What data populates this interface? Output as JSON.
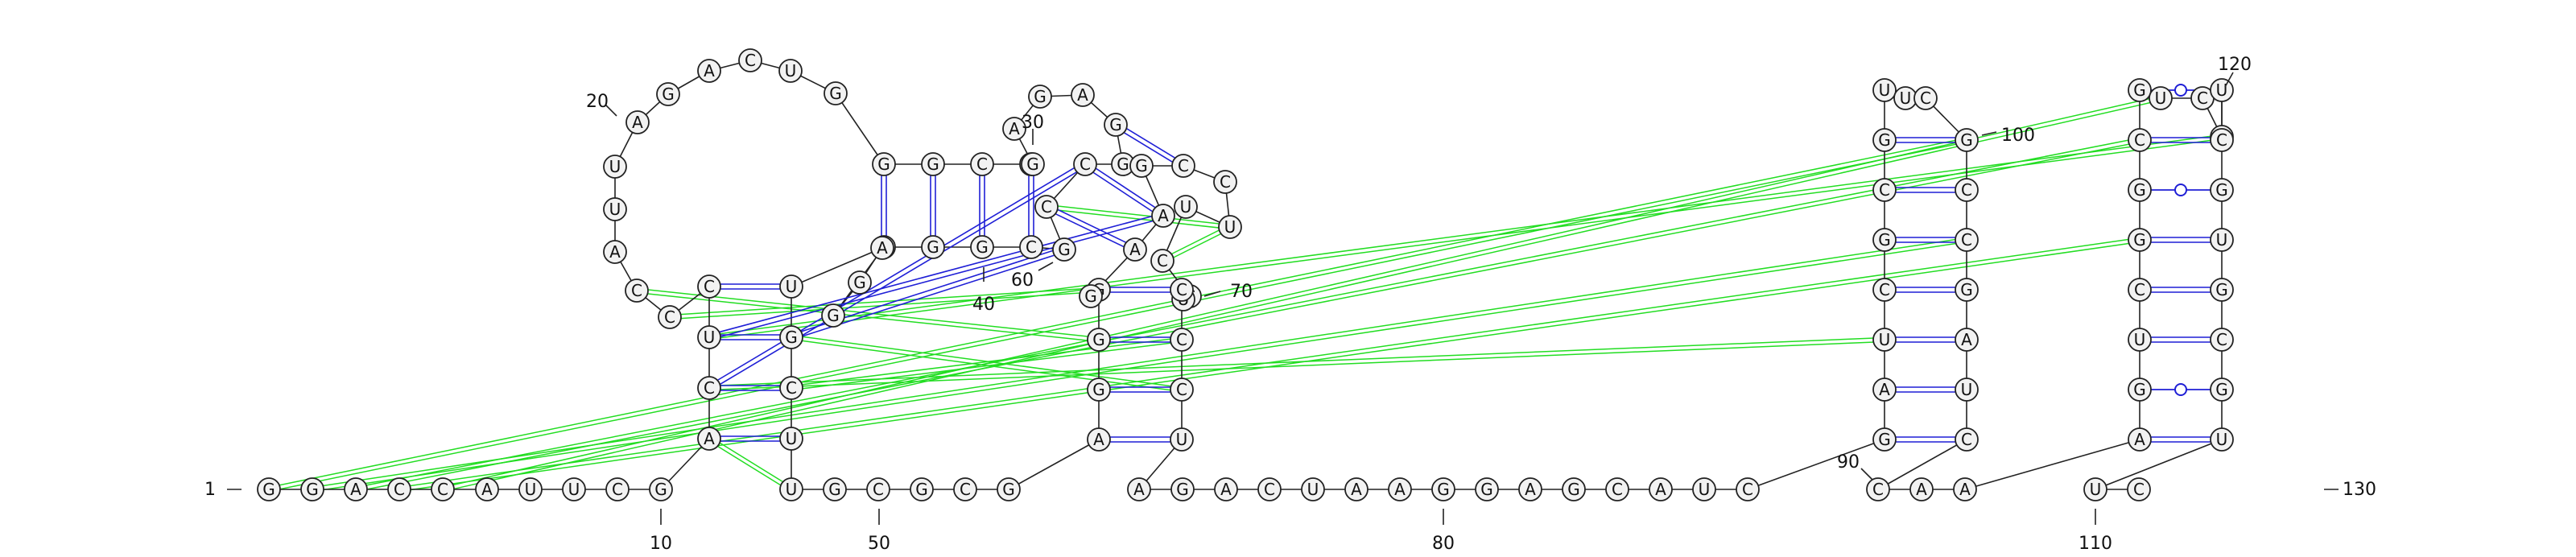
{
  "diagram": {
    "type": "rna-secondary-structure",
    "colors": {
      "canonical_pair": "#1f1fd6",
      "wobble_pair": "#1f1fd6",
      "tertiary_interaction": "#22dd22",
      "backbone": "#222222",
      "nucleotide_fill": "#f2f2f2",
      "nucleotide_stroke": "#222222"
    },
    "position_labels": [
      "1",
      "10",
      "20",
      "30",
      "40",
      "50",
      "60",
      "70",
      "80",
      "90",
      "100",
      "110",
      "120",
      "130"
    ],
    "sequence": [
      {
        "n": 1,
        "base": "G"
      },
      {
        "n": 2,
        "base": "G"
      },
      {
        "n": 3,
        "base": "A"
      },
      {
        "n": 4,
        "base": "C"
      },
      {
        "n": 5,
        "base": "C"
      },
      {
        "n": 6,
        "base": "A"
      },
      {
        "n": 7,
        "base": "U"
      },
      {
        "n": 8,
        "base": "U"
      },
      {
        "n": 9,
        "base": "C"
      },
      {
        "n": 10,
        "base": "G"
      },
      {
        "n": 11,
        "base": "A"
      },
      {
        "n": 12,
        "base": "C"
      },
      {
        "n": 13,
        "base": "U"
      },
      {
        "n": 14,
        "base": "C"
      },
      {
        "n": 15,
        "base": "C"
      },
      {
        "n": 16,
        "base": "C"
      },
      {
        "n": 17,
        "base": "A"
      },
      {
        "n": 18,
        "base": "U"
      },
      {
        "n": 19,
        "base": "U"
      },
      {
        "n": 20,
        "base": "A"
      },
      {
        "n": 21,
        "base": "G"
      },
      {
        "n": 22,
        "base": "A"
      },
      {
        "n": 23,
        "base": "C"
      },
      {
        "n": 24,
        "base": "U"
      },
      {
        "n": 25,
        "base": "G"
      },
      {
        "n": 26,
        "base": "G"
      },
      {
        "n": 27,
        "base": "G"
      },
      {
        "n": 28,
        "base": "C"
      },
      {
        "n": 29,
        "base": "C"
      },
      {
        "n": 30,
        "base": "G"
      },
      {
        "n": 31,
        "base": "A"
      },
      {
        "n": 32,
        "base": "G"
      },
      {
        "n": 33,
        "base": "A"
      },
      {
        "n": 34,
        "base": "G"
      },
      {
        "n": 35,
        "base": "G"
      },
      {
        "n": 36,
        "base": "C"
      },
      {
        "n": 37,
        "base": "C"
      },
      {
        "n": 38,
        "base": "G"
      },
      {
        "n": 39,
        "base": "C"
      },
      {
        "n": 40,
        "base": "G"
      },
      {
        "n": 41,
        "base": "G"
      },
      {
        "n": 42,
        "base": "C"
      },
      {
        "n": 43,
        "base": "G"
      },
      {
        "n": 44,
        "base": "G"
      },
      {
        "n": 45,
        "base": "A"
      },
      {
        "n": 46,
        "base": "U"
      },
      {
        "n": 47,
        "base": "G"
      },
      {
        "n": 48,
        "base": "C"
      },
      {
        "n": 49,
        "base": "U"
      },
      {
        "n": 50,
        "base": "U"
      },
      {
        "n": 51,
        "base": "G"
      },
      {
        "n": 52,
        "base": "C"
      },
      {
        "n": 53,
        "base": "G"
      },
      {
        "n": 54,
        "base": "C"
      },
      {
        "n": 55,
        "base": "G"
      },
      {
        "n": 56,
        "base": "A"
      },
      {
        "n": 57,
        "base": "G"
      },
      {
        "n": 58,
        "base": "G"
      },
      {
        "n": 59,
        "base": "G"
      },
      {
        "n": 60,
        "base": "G"
      },
      {
        "n": 61,
        "base": "A"
      },
      {
        "n": 62,
        "base": "A"
      },
      {
        "n": 63,
        "base": "G"
      },
      {
        "n": 64,
        "base": "C"
      },
      {
        "n": 65,
        "base": "C"
      },
      {
        "n": 66,
        "base": "U"
      },
      {
        "n": 67,
        "base": "U"
      },
      {
        "n": 68,
        "base": "C"
      },
      {
        "n": 69,
        "base": "C"
      },
      {
        "n": 70,
        "base": "U"
      },
      {
        "n": 71,
        "base": "C"
      },
      {
        "n": 72,
        "base": "C"
      },
      {
        "n": 73,
        "base": "C"
      },
      {
        "n": 74,
        "base": "U"
      },
      {
        "n": 75,
        "base": "A"
      },
      {
        "n": 76,
        "base": "G"
      },
      {
        "n": 77,
        "base": "A"
      },
      {
        "n": 78,
        "base": "C"
      },
      {
        "n": 79,
        "base": "U"
      },
      {
        "n": 80,
        "base": "A"
      },
      {
        "n": 81,
        "base": "A"
      },
      {
        "n": 82,
        "base": "G"
      },
      {
        "n": 83,
        "base": "G"
      },
      {
        "n": 84,
        "base": "A"
      },
      {
        "n": 85,
        "base": "G"
      },
      {
        "n": 86,
        "base": "C"
      },
      {
        "n": 87,
        "base": "A"
      },
      {
        "n": 88,
        "base": "U"
      },
      {
        "n": 89,
        "base": "C"
      },
      {
        "n": 90,
        "base": "G"
      },
      {
        "n": 91,
        "base": "A"
      },
      {
        "n": 92,
        "base": "U"
      },
      {
        "n": 93,
        "base": "C"
      },
      {
        "n": 94,
        "base": "G"
      },
      {
        "n": 95,
        "base": "C"
      },
      {
        "n": 96,
        "base": "G"
      },
      {
        "n": 97,
        "base": "U"
      },
      {
        "n": 98,
        "base": "U"
      },
      {
        "n": 99,
        "base": "C"
      },
      {
        "n": 100,
        "base": "G"
      },
      {
        "n": 101,
        "base": "C"
      },
      {
        "n": 102,
        "base": "C"
      },
      {
        "n": 103,
        "base": "G"
      },
      {
        "n": 104,
        "base": "A"
      },
      {
        "n": 105,
        "base": "U"
      },
      {
        "n": 106,
        "base": "C"
      },
      {
        "n": 107,
        "base": "C"
      },
      {
        "n": 108,
        "base": "A"
      },
      {
        "n": 109,
        "base": "A"
      },
      {
        "n": 110,
        "base": "A"
      },
      {
        "n": 111,
        "base": "G"
      },
      {
        "n": 112,
        "base": "U"
      },
      {
        "n": 113,
        "base": "C"
      },
      {
        "n": 114,
        "base": "G"
      },
      {
        "n": 115,
        "base": "G"
      },
      {
        "n": 116,
        "base": "C"
      },
      {
        "n": 117,
        "base": "G"
      },
      {
        "n": 118,
        "base": "U"
      },
      {
        "n": 119,
        "base": "C"
      },
      {
        "n": 120,
        "base": "G"
      },
      {
        "n": 121,
        "base": "U"
      },
      {
        "n": 122,
        "base": "C"
      },
      {
        "n": 123,
        "base": "G"
      },
      {
        "n": 124,
        "base": "U"
      },
      {
        "n": 125,
        "base": "G"
      },
      {
        "n": 126,
        "base": "C"
      },
      {
        "n": 127,
        "base": "G"
      },
      {
        "n": 128,
        "base": "U"
      },
      {
        "n": 129,
        "base": "U"
      },
      {
        "n": 130,
        "base": "C"
      }
    ],
    "pairs": [
      {
        "i": 11,
        "j": 49,
        "type": "canonical"
      },
      {
        "i": 12,
        "j": 48,
        "type": "canonical"
      },
      {
        "i": 13,
        "j": 47,
        "type": "canonical"
      },
      {
        "i": 14,
        "j": 46,
        "type": "canonical"
      },
      {
        "i": 26,
        "j": 42,
        "type": "canonical"
      },
      {
        "i": 27,
        "j": 41,
        "type": "canonical"
      },
      {
        "i": 28,
        "j": 40,
        "type": "canonical"
      },
      {
        "i": 29,
        "j": 39,
        "type": "canonical"
      },
      {
        "i": 34,
        "j": 64,
        "type": "canonical"
      },
      {
        "i": 35,
        "j": 63,
        "type": "canonical"
      },
      {
        "i": 36,
        "j": 62,
        "type": "canonical"
      },
      {
        "i": 37,
        "j": 61,
        "type": "canonical"
      },
      {
        "i": 56,
        "j": 74,
        "type": "canonical"
      },
      {
        "i": 57,
        "j": 73,
        "type": "canonical"
      },
      {
        "i": 58,
        "j": 72,
        "type": "canonical"
      },
      {
        "i": 59,
        "j": 71,
        "type": "canonical"
      },
      {
        "i": 90,
        "j": 106,
        "type": "canonical"
      },
      {
        "i": 91,
        "j": 105,
        "type": "canonical"
      },
      {
        "i": 92,
        "j": 104,
        "type": "canonical"
      },
      {
        "i": 93,
        "j": 103,
        "type": "canonical"
      },
      {
        "i": 94,
        "j": 102,
        "type": "canonical"
      },
      {
        "i": 95,
        "j": 101,
        "type": "canonical"
      },
      {
        "i": 96,
        "j": 100,
        "type": "canonical"
      },
      {
        "i": 97,
        "j": 99,
        "type": "wobble"
      },
      {
        "i": 110,
        "j": 128,
        "type": "canonical"
      },
      {
        "i": 111,
        "j": 127,
        "type": "wobble"
      },
      {
        "i": 112,
        "j": 126,
        "type": "canonical"
      },
      {
        "i": 113,
        "j": 125,
        "type": "canonical"
      },
      {
        "i": 114,
        "j": 124,
        "type": "canonical"
      },
      {
        "i": 115,
        "j": 123,
        "type": "wobble"
      },
      {
        "i": 116,
        "j": 122,
        "type": "canonical"
      },
      {
        "i": 117,
        "j": 121,
        "type": "wobble"
      },
      {
        "i": 12,
        "j": 36,
        "type": "long-range"
      },
      {
        "i": 13,
        "j": 62,
        "type": "long-range"
      },
      {
        "i": 47,
        "j": 38,
        "type": "long-range"
      },
      {
        "i": 11,
        "j": 50,
        "type": "tertiary"
      },
      {
        "i": 66,
        "j": 68,
        "type": "tertiary"
      },
      {
        "i": 1,
        "j": 100,
        "type": "tertiary"
      },
      {
        "i": 2,
        "j": 102,
        "type": "tertiary"
      },
      {
        "i": 3,
        "j": 116,
        "type": "tertiary"
      },
      {
        "i": 4,
        "j": 114,
        "type": "tertiary"
      },
      {
        "i": 5,
        "j": 118,
        "type": "tertiary"
      },
      {
        "i": 15,
        "j": 59,
        "type": "tertiary"
      },
      {
        "i": 16,
        "j": 58,
        "type": "tertiary"
      },
      {
        "i": 47,
        "j": 73,
        "type": "tertiary"
      },
      {
        "i": 12,
        "j": 92,
        "type": "tertiary"
      },
      {
        "i": 13,
        "j": 120,
        "type": "tertiary"
      },
      {
        "i": 48,
        "j": 72,
        "type": "tertiary"
      },
      {
        "i": 37,
        "j": 66,
        "type": "tertiary"
      }
    ]
  }
}
